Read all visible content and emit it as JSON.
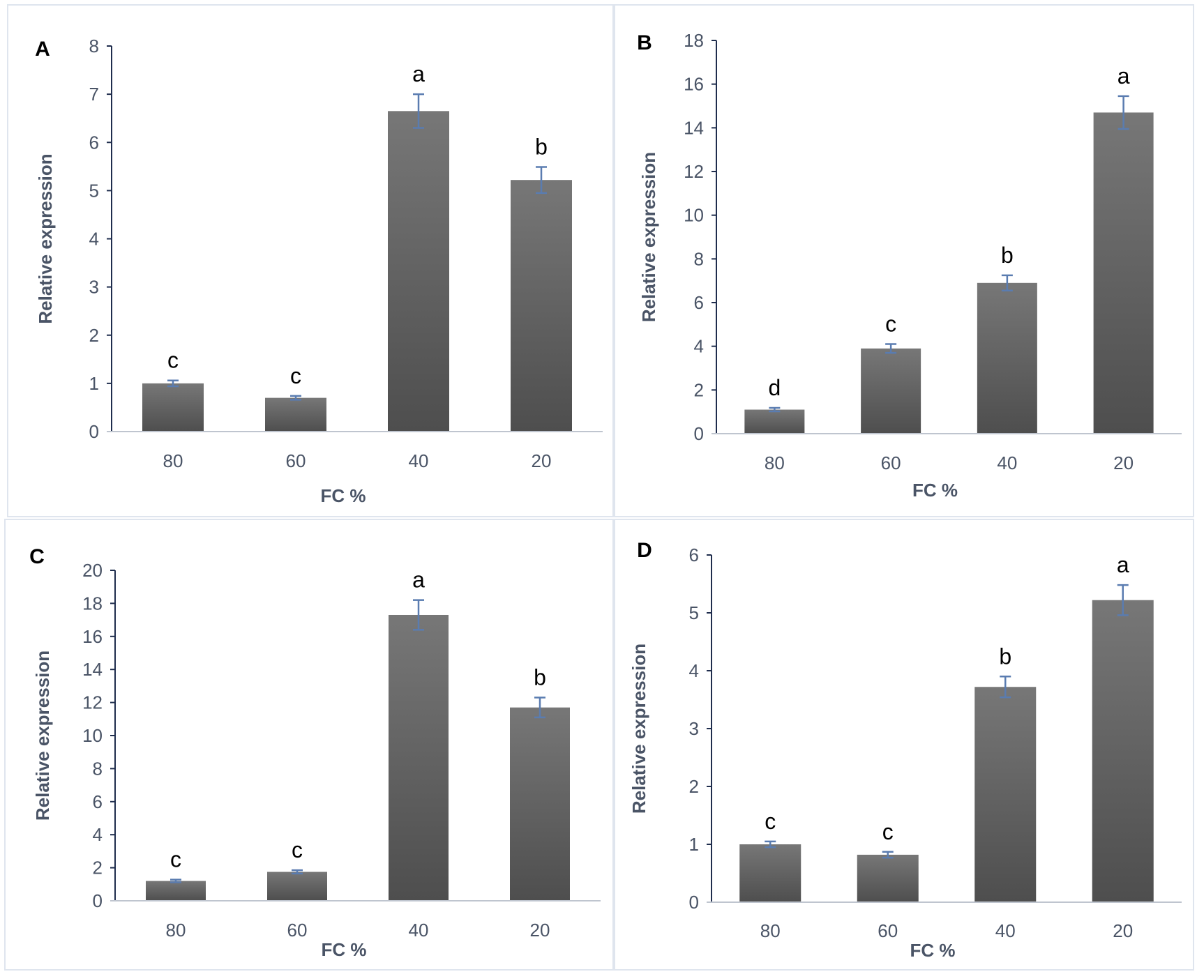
{
  "colors": {
    "bar_top": "#777777",
    "bar_bottom": "#4e4e4e",
    "axis": "#1f2d4d",
    "tick_text": "#4a5466",
    "error_bar": "#5a7cb0",
    "panel_border": "#dfe5ee"
  },
  "chart_data": [
    {
      "type": "bar",
      "panel": "A",
      "categories": [
        "80",
        "60",
        "40",
        "20"
      ],
      "values": [
        1.0,
        0.7,
        6.65,
        5.22
      ],
      "errors": [
        0.06,
        0.04,
        0.35,
        0.27
      ],
      "significance": [
        "c",
        "c",
        "a",
        "b"
      ],
      "xlabel": "FC %",
      "ylabel": "Relative expression",
      "ylim": [
        0,
        8
      ],
      "yticks": [
        0,
        1,
        2,
        3,
        4,
        5,
        6,
        7,
        8
      ],
      "grid": false
    },
    {
      "type": "bar",
      "panel": "B",
      "categories": [
        "80",
        "60",
        "40",
        "20"
      ],
      "values": [
        1.1,
        3.9,
        6.9,
        14.7
      ],
      "errors": [
        0.08,
        0.2,
        0.35,
        0.75
      ],
      "significance": [
        "d",
        "c",
        "b",
        "a"
      ],
      "xlabel": "FC %",
      "ylabel": "Relative expression",
      "ylim": [
        0,
        18
      ],
      "yticks": [
        0,
        2,
        4,
        6,
        8,
        10,
        12,
        14,
        16,
        18
      ],
      "grid": false
    },
    {
      "type": "bar",
      "panel": "C",
      "categories": [
        "80",
        "60",
        "40",
        "20"
      ],
      "values": [
        1.2,
        1.75,
        17.3,
        11.7
      ],
      "errors": [
        0.08,
        0.1,
        0.9,
        0.6
      ],
      "significance": [
        "c",
        "c",
        "a",
        "b"
      ],
      "xlabel": "FC %",
      "ylabel": "Relative expression",
      "ylim": [
        0,
        20
      ],
      "yticks": [
        0,
        2,
        4,
        6,
        8,
        10,
        12,
        14,
        16,
        18,
        20
      ],
      "grid": false
    },
    {
      "type": "bar",
      "panel": "D",
      "categories": [
        "80",
        "60",
        "40",
        "20"
      ],
      "values": [
        1.0,
        0.82,
        3.72,
        5.22
      ],
      "errors": [
        0.05,
        0.05,
        0.18,
        0.26
      ],
      "significance": [
        "c",
        "c",
        "b",
        "a"
      ],
      "xlabel": "FC %",
      "ylabel": "Relative expression",
      "ylim": [
        0,
        6
      ],
      "yticks": [
        0,
        1,
        2,
        3,
        4,
        5,
        6
      ],
      "grid": false
    }
  ]
}
